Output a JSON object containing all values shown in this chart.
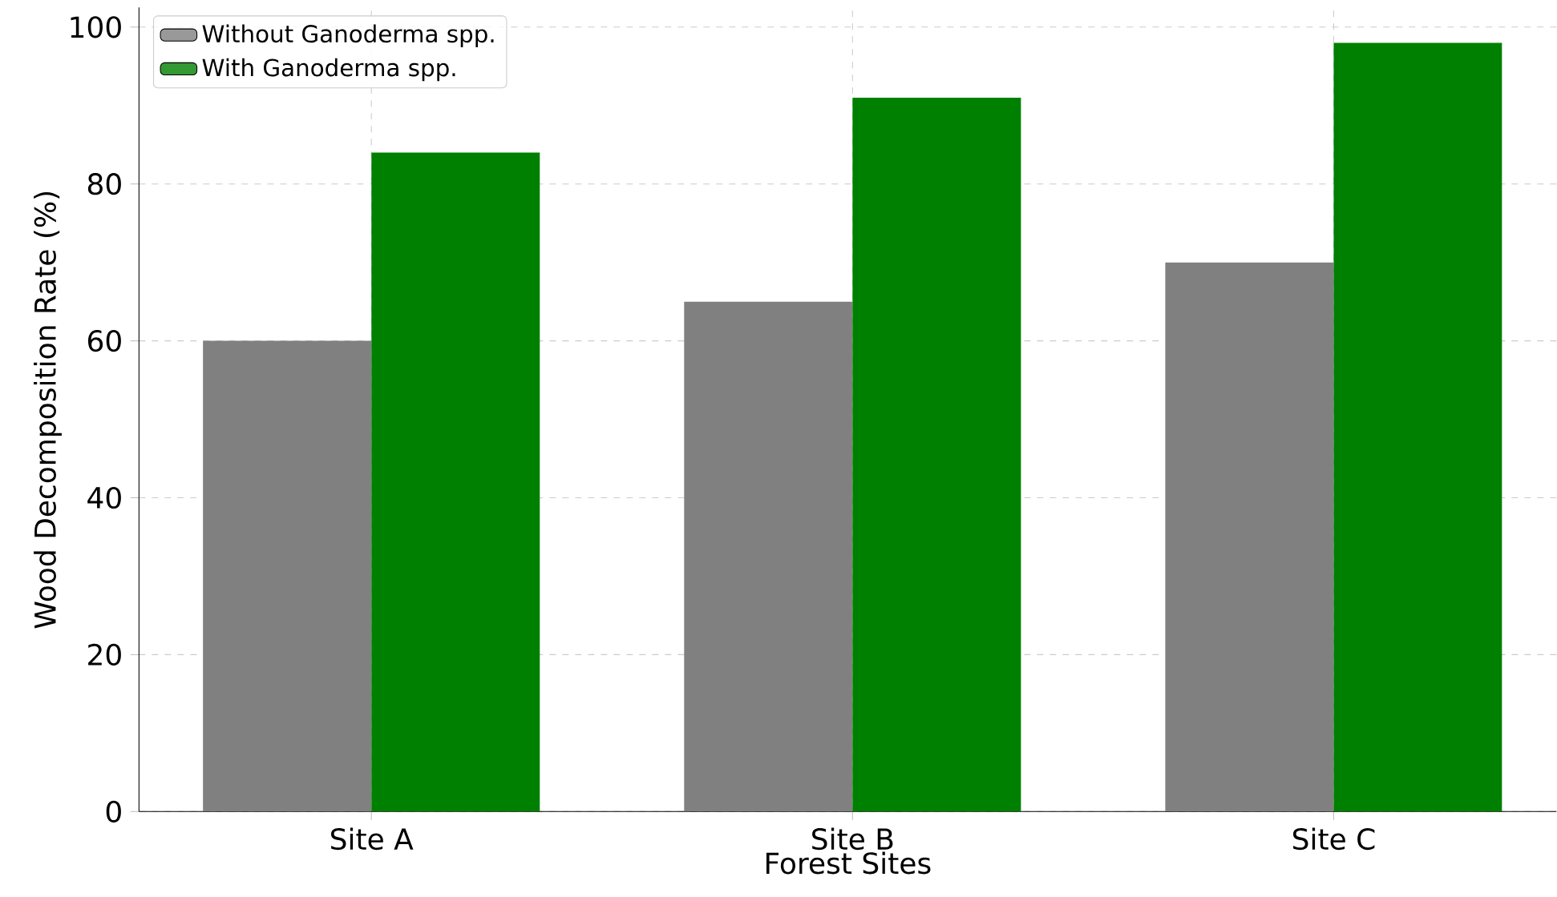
{
  "chart_data": {
    "type": "bar",
    "xlabel": "Forest Sites",
    "ylabel": "Wood Decomposition Rate (%)",
    "categories": [
      "Site A",
      "Site B",
      "Site C"
    ],
    "series": [
      {
        "name": "Without Ganoderma spp.",
        "color": "#808080",
        "values": [
          60,
          65,
          70
        ]
      },
      {
        "name": "With Ganoderma spp.",
        "color": "#008000",
        "values": [
          84,
          91,
          98
        ]
      }
    ],
    "ylim": [
      0,
      102.5
    ],
    "yticks": [
      0,
      20,
      40,
      60,
      80,
      100
    ],
    "grid": true,
    "legend": "top left"
  }
}
